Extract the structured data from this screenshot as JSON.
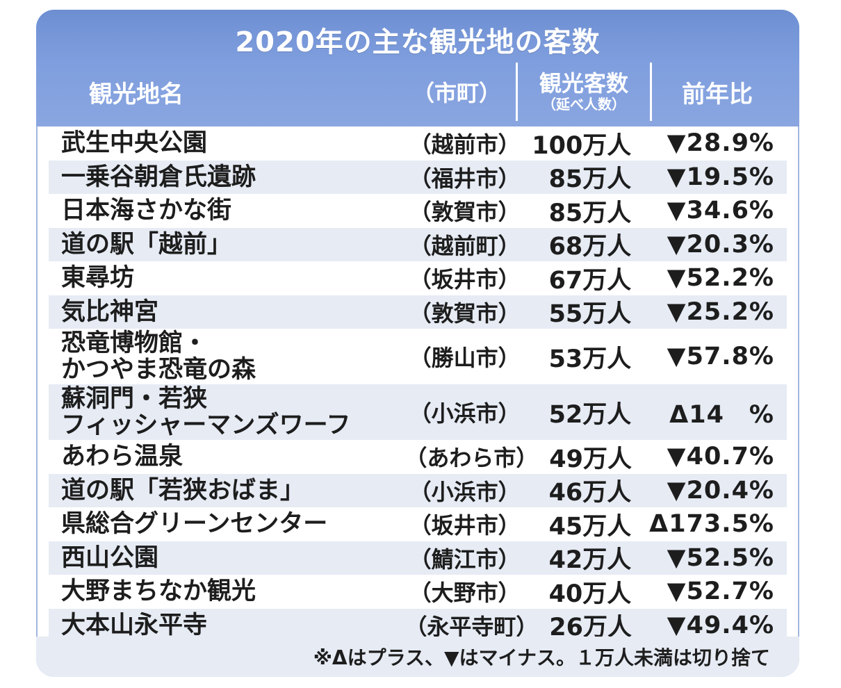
{
  "title": "2020年の主な観光地の客数",
  "headers": {
    "name": "観光地名",
    "city": "（市町）",
    "count_main": "観光客数",
    "count_sub": "（延べ人数）",
    "ratio": "前年比"
  },
  "rows": [
    {
      "name": [
        "武生中央公園"
      ],
      "city": "（越前市）",
      "count": "100万人",
      "ratio": "▼28.9%"
    },
    {
      "name": [
        "一乗谷朝倉氏遺跡"
      ],
      "city": "（福井市）",
      "count": "85万人",
      "ratio": "▼19.5%"
    },
    {
      "name": [
        "日本海さかな街"
      ],
      "city": "（敦賀市）",
      "count": "85万人",
      "ratio": "▼34.6%"
    },
    {
      "name": [
        "道の駅「越前」"
      ],
      "city": "（越前町）",
      "count": "68万人",
      "ratio": "▼20.3%"
    },
    {
      "name": [
        "東尋坊"
      ],
      "city": "（坂井市）",
      "count": "67万人",
      "ratio": "▼52.2%"
    },
    {
      "name": [
        "気比神宮"
      ],
      "city": "（敦賀市）",
      "count": "55万人",
      "ratio": "▼25.2%"
    },
    {
      "name": [
        "恐竜博物館・",
        "かつやま恐竜の森"
      ],
      "city": "（勝山市）",
      "count": "53万人",
      "ratio": "▼57.8%"
    },
    {
      "name": [
        "蘇洞門・若狭",
        "フィッシャーマンズワーフ"
      ],
      "city": "（小浜市）",
      "count": "52万人",
      "ratio": "Δ14　%"
    },
    {
      "name": [
        "あわら温泉"
      ],
      "city": "（あわら市）",
      "count": "49万人",
      "ratio": "▼40.7%"
    },
    {
      "name": [
        "道の駅「若狭おばま」"
      ],
      "city": "（小浜市）",
      "count": "46万人",
      "ratio": "▼20.4%"
    },
    {
      "name": [
        "県総合グリーンセンター"
      ],
      "city": "（坂井市）",
      "count": "45万人",
      "ratio": "Δ173.5%"
    },
    {
      "name": [
        "西山公園"
      ],
      "city": "（鯖江市）",
      "count": "42万人",
      "ratio": "▼52.5%"
    },
    {
      "name": [
        "大野まちなか観光"
      ],
      "city": "（大野市）",
      "count": "40万人",
      "ratio": "▼52.7%"
    },
    {
      "name": [
        "大本山永平寺"
      ],
      "city": "（永平寺町）",
      "count": "26万人",
      "ratio": "▼49.4%"
    }
  ],
  "note": "※Δはプラス、▼はマイナス。１万人未満は切り捨て",
  "colors": {
    "header": "#7f9ede",
    "stripe": "#e6ebf4"
  }
}
